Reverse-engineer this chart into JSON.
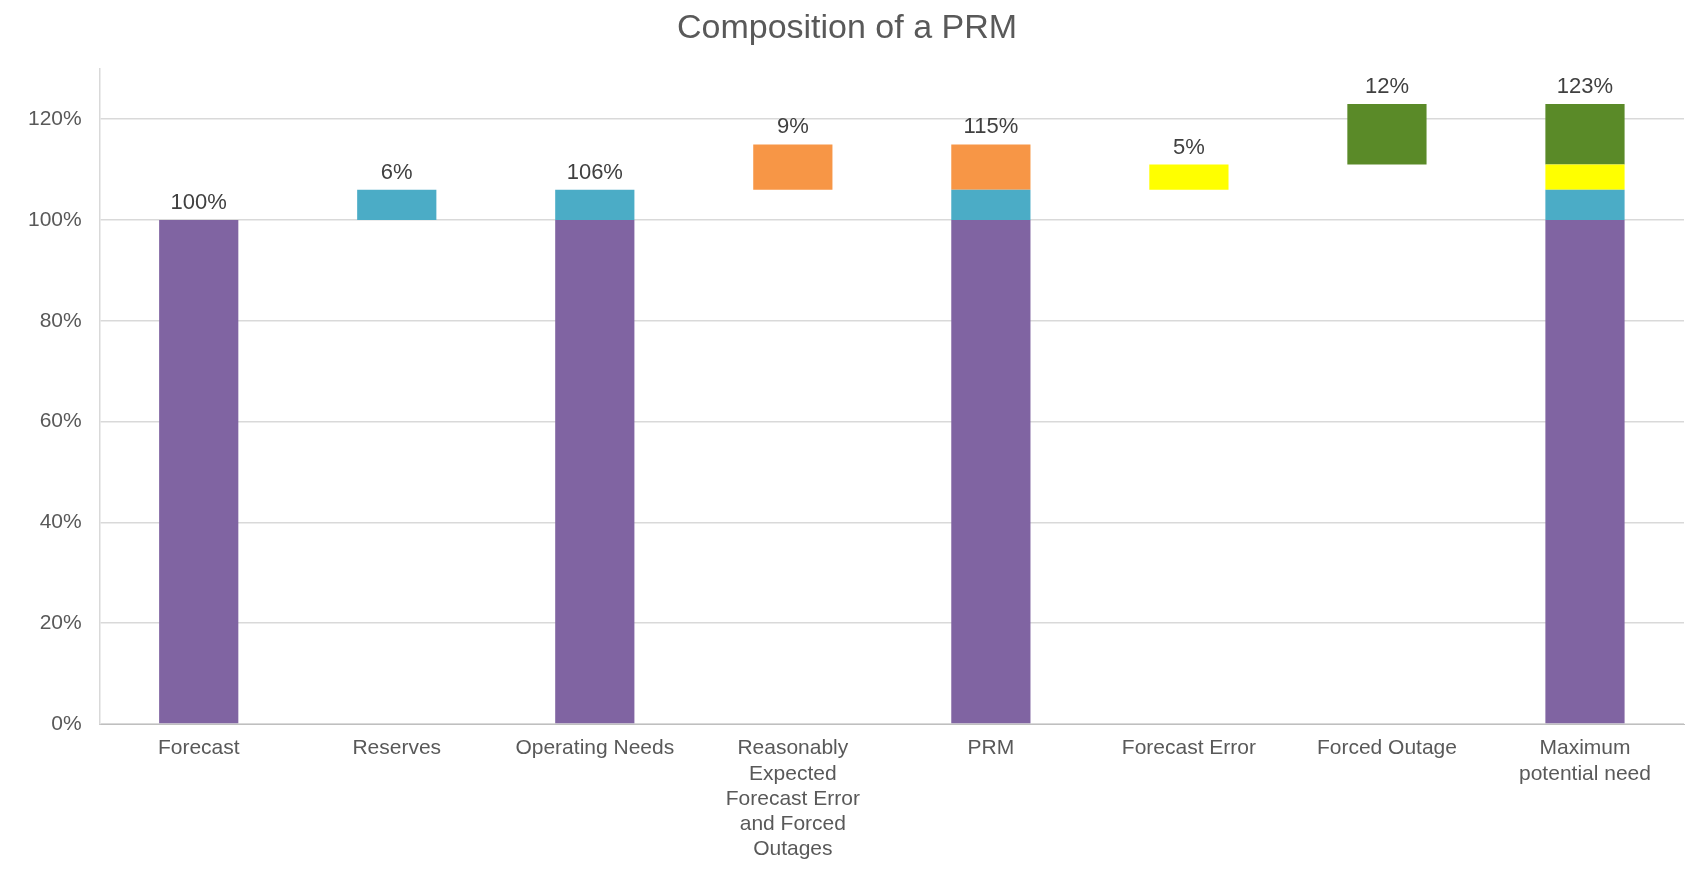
{
  "chart_data": {
    "type": "bar",
    "title": "Composition of a PRM",
    "categories": [
      "Forecast",
      "Reserves",
      "Operating Needs",
      "Reasonably Expected Forecast Error and Forced Outages",
      "PRM",
      "Forecast Error",
      "Forced Outage",
      "Maximum potential need"
    ],
    "series": [
      {
        "color": "#8064a2",
        "values": [
          100,
          null,
          100,
          null,
          100,
          null,
          null,
          100
        ],
        "base": [
          0,
          null,
          0,
          null,
          0,
          null,
          null,
          0
        ]
      },
      {
        "color": "#4bacc6",
        "values": [
          null,
          6,
          6,
          null,
          6,
          null,
          null,
          6
        ],
        "base": [
          null,
          100,
          100,
          null,
          100,
          null,
          null,
          100
        ]
      },
      {
        "color": "#f79646",
        "values": [
          null,
          null,
          null,
          9,
          9,
          null,
          null,
          null
        ],
        "base": [
          null,
          null,
          null,
          106,
          106,
          null,
          null,
          null
        ]
      },
      {
        "color": "#ffff00",
        "values": [
          null,
          null,
          null,
          null,
          null,
          5,
          null,
          5
        ],
        "base": [
          null,
          null,
          null,
          null,
          null,
          106,
          null,
          106
        ]
      },
      {
        "color": "#5a8a28",
        "values": [
          null,
          null,
          null,
          null,
          null,
          null,
          12,
          12
        ],
        "base": [
          null,
          null,
          null,
          null,
          null,
          null,
          111,
          111
        ]
      }
    ],
    "totals": [
      "100%",
      "6%",
      "106%",
      "9%",
      "115%",
      "5%",
      "12%",
      "123%"
    ],
    "ylim": [
      0,
      130
    ],
    "yticks": [
      {
        "value": 0,
        "label": "0%"
      },
      {
        "value": 20,
        "label": "20%"
      },
      {
        "value": 40,
        "label": "40%"
      },
      {
        "value": 60,
        "label": "60%"
      },
      {
        "value": 80,
        "label": "80%"
      },
      {
        "value": 100,
        "label": "100%"
      },
      {
        "value": 120,
        "label": "120%"
      }
    ],
    "grid": "y",
    "legend": false
  }
}
